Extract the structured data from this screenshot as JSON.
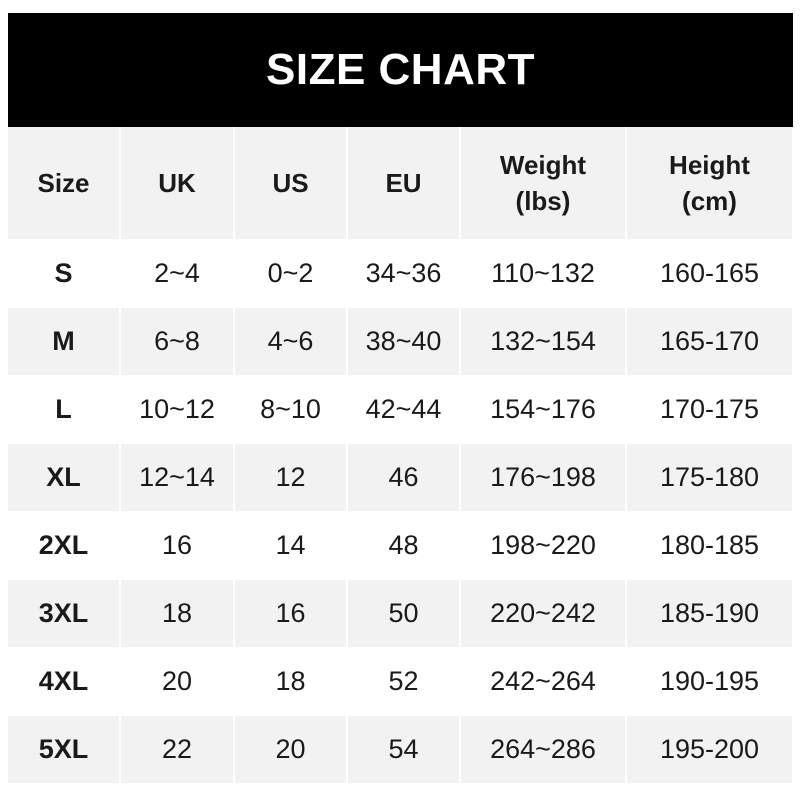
{
  "title": "SIZE CHART",
  "headers": [
    "Size",
    "UK",
    "US",
    "EU",
    "Weight\n(lbs)",
    "Height\n(cm)"
  ],
  "header_lines": [
    [
      "Size"
    ],
    [
      "UK"
    ],
    [
      "US"
    ],
    [
      "EU"
    ],
    [
      "Weight",
      "(lbs)"
    ],
    [
      "Height",
      "(cm)"
    ]
  ],
  "rows": [
    [
      "S",
      "2~4",
      "0~2",
      "34~36",
      "110~132",
      "160-165"
    ],
    [
      "M",
      "6~8",
      "4~6",
      "38~40",
      "132~154",
      "165-170"
    ],
    [
      "L",
      "10~12",
      "8~10",
      "42~44",
      "154~176",
      "170-175"
    ],
    [
      "XL",
      "12~14",
      "12",
      "46",
      "176~198",
      "175-180"
    ],
    [
      "2XL",
      "16",
      "14",
      "48",
      "198~220",
      "180-185"
    ],
    [
      "3XL",
      "18",
      "16",
      "50",
      "220~242",
      "185-190"
    ],
    [
      "4XL",
      "20",
      "18",
      "52",
      "242~264",
      "190-195"
    ],
    [
      "5XL",
      "22",
      "20",
      "54",
      "264~286",
      "195-200"
    ]
  ],
  "colors": {
    "banner": "#000000",
    "stripe": "#f2f2f2",
    "background": "#ffffff"
  }
}
